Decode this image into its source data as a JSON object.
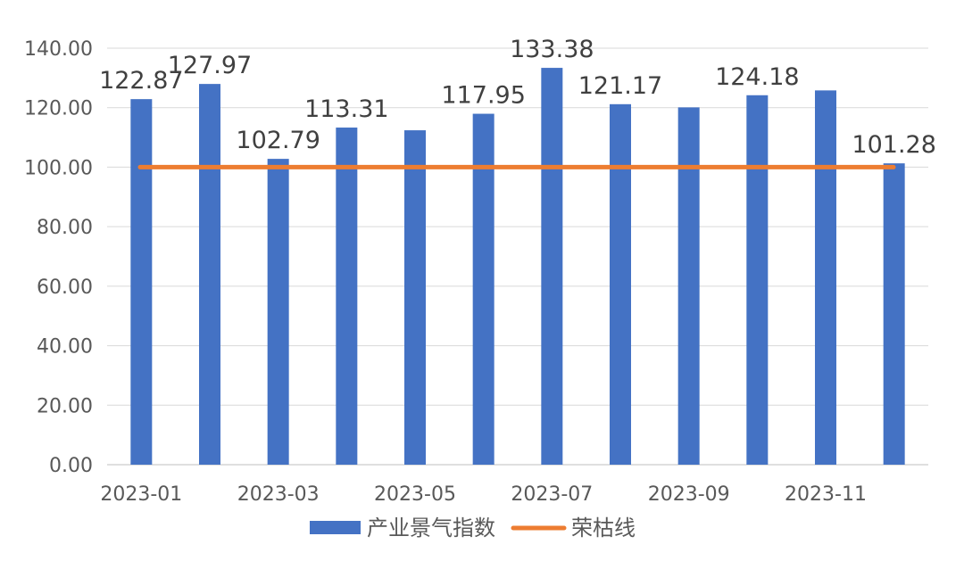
{
  "chart_data": {
    "type": "bar",
    "categories": [
      "2023-01",
      "2023-02",
      "2023-03",
      "2023-04",
      "2023-05",
      "2023-06",
      "2023-07",
      "2023-08",
      "2023-09",
      "2023-10",
      "2023-11",
      "2023-12"
    ],
    "x_tick_labels": [
      "2023-01",
      "",
      "2023-03",
      "",
      "2023-05",
      "",
      "2023-07",
      "",
      "2023-09",
      "",
      "2023-11",
      ""
    ],
    "series": [
      {
        "name": "产业景气指数",
        "type": "bar",
        "color": "#4472C4",
        "values": [
          122.87,
          127.97,
          102.79,
          113.31,
          112.4,
          117.95,
          133.38,
          121.17,
          120.1,
          124.18,
          125.8,
          101.28
        ],
        "data_labels": [
          "122.87",
          "127.97",
          "102.79",
          "113.31",
          "",
          "117.95",
          "133.38",
          "121.17",
          "",
          "124.18",
          "",
          "101.28"
        ]
      },
      {
        "name": "荣枯线",
        "type": "line",
        "color": "#ED7D31",
        "values": [
          100,
          100,
          100,
          100,
          100,
          100,
          100,
          100,
          100,
          100,
          100,
          100
        ]
      }
    ],
    "y_ticks": [
      "0.00",
      "20.00",
      "40.00",
      "60.00",
      "80.00",
      "100.00",
      "120.00",
      "140.00"
    ],
    "ylim": [
      0,
      140
    ],
    "grid": true,
    "legend": "bottom"
  }
}
